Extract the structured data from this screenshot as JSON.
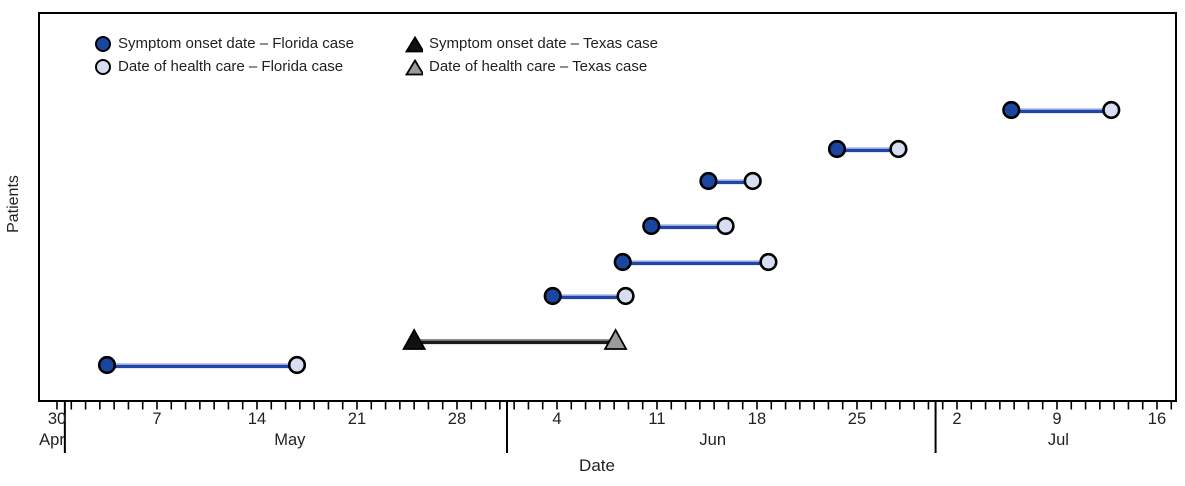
{
  "axes": {
    "x_label": "Date",
    "y_label": "Patients"
  },
  "legend": {
    "items": [
      {
        "label": "Symptom onset date – Florida case",
        "marker": "circle",
        "fill": "#1a46a0"
      },
      {
        "label": "Date of health care – Florida case",
        "marker": "circle",
        "fill": "#d8def2"
      },
      {
        "label": "Symptom onset date – Texas case",
        "marker": "triangle",
        "fill": "#111111"
      },
      {
        "label": "Date of health care – Texas case",
        "marker": "triangle",
        "fill": "#9b9b9b"
      }
    ]
  },
  "colors": {
    "frame": "#000000",
    "florida_onset": "#1a46a0",
    "florida_care": "#d8def2",
    "florida_line": "#2145a6",
    "florida_line_highlight": "#bcc9ec",
    "texas_onset": "#111111",
    "texas_care": "#9b9b9b",
    "texas_line": "#1b1b1b",
    "texas_line_highlight": "#8f8f8f",
    "marker_stroke": "#000000"
  },
  "chart_data": {
    "type": "scatter",
    "subtype": "dumbbell_timeline",
    "title": "",
    "xlabel": "Date",
    "ylabel": "Patients",
    "x_axis": {
      "range": [
        "Apr 30",
        "Jul 16"
      ],
      "day_min": 0,
      "day_max": 78,
      "tick_interval_days": 1,
      "week_ticks": [
        {
          "label": "30",
          "day": 0
        },
        {
          "label": "7",
          "day": 7
        },
        {
          "label": "14",
          "day": 14
        },
        {
          "label": "21",
          "day": 21
        },
        {
          "label": "28",
          "day": 28
        },
        {
          "label": "4",
          "day": 35
        },
        {
          "label": "11",
          "day": 42
        },
        {
          "label": "18",
          "day": 49
        },
        {
          "label": "25",
          "day": 56
        },
        {
          "label": "2",
          "day": 63
        },
        {
          "label": "9",
          "day": 70
        },
        {
          "label": "16",
          "day": 77
        }
      ],
      "month_labels": [
        {
          "label": "Apr",
          "day": -0.35
        },
        {
          "label": "May",
          "day": 16.3
        },
        {
          "label": "Jun",
          "day": 45.9
        },
        {
          "label": "Jul",
          "day": 70.1
        }
      ],
      "month_separator_days": [
        0.55,
        31.5,
        61.5
      ]
    },
    "patients": [
      {
        "row": 1,
        "case": "Florida",
        "symptom_onset_date": "May 3",
        "health_care_date": "May 17",
        "onset_day": 3.5,
        "care_day": 16.8
      },
      {
        "row": 2,
        "case": "Texas",
        "symptom_onset_date": "May 25",
        "health_care_date": "Jun 8",
        "onset_day": 25.0,
        "care_day": 39.1
      },
      {
        "row": 3,
        "case": "Florida",
        "symptom_onset_date": "Jun 4",
        "health_care_date": "Jun 9",
        "onset_day": 34.7,
        "care_day": 39.8
      },
      {
        "row": 4,
        "case": "Florida",
        "symptom_onset_date": "Jun 9",
        "health_care_date": "Jun 19",
        "onset_day": 39.6,
        "care_day": 49.8
      },
      {
        "row": 5,
        "case": "Florida",
        "symptom_onset_date": "Jun 11",
        "health_care_date": "Jun 16",
        "onset_day": 41.6,
        "care_day": 46.8
      },
      {
        "row": 6,
        "case": "Florida",
        "symptom_onset_date": "Jun 15",
        "health_care_date": "Jun 18",
        "onset_day": 45.6,
        "care_day": 48.7
      },
      {
        "row": 7,
        "case": "Florida",
        "symptom_onset_date": "Jun 24",
        "health_care_date": "Jun 28",
        "onset_day": 54.6,
        "care_day": 58.9
      },
      {
        "row": 8,
        "case": "Florida",
        "symptom_onset_date": "Jul 6",
        "health_care_date": "Jul 13",
        "onset_day": 66.8,
        "care_day": 73.8
      }
    ]
  }
}
